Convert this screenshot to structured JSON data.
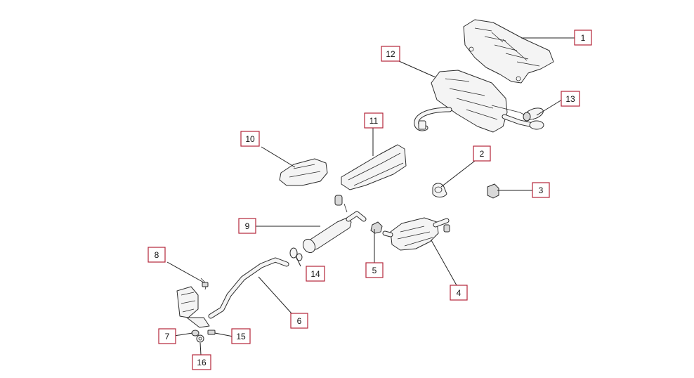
{
  "diagram": {
    "callouts": [
      {
        "id": "1",
        "label": "1"
      },
      {
        "id": "2",
        "label": "2"
      },
      {
        "id": "3",
        "label": "3"
      },
      {
        "id": "4",
        "label": "4"
      },
      {
        "id": "5",
        "label": "5"
      },
      {
        "id": "6",
        "label": "6"
      },
      {
        "id": "7",
        "label": "7"
      },
      {
        "id": "8",
        "label": "8"
      },
      {
        "id": "9",
        "label": "9"
      },
      {
        "id": "10",
        "label": "10"
      },
      {
        "id": "11",
        "label": "11"
      },
      {
        "id": "12",
        "label": "12"
      },
      {
        "id": "13",
        "label": "13"
      },
      {
        "id": "14",
        "label": "14"
      },
      {
        "id": "15",
        "label": "15"
      },
      {
        "id": "16",
        "label": "16"
      }
    ],
    "colors": {
      "callout_border": "#b3263a",
      "line": "#222222"
    }
  }
}
